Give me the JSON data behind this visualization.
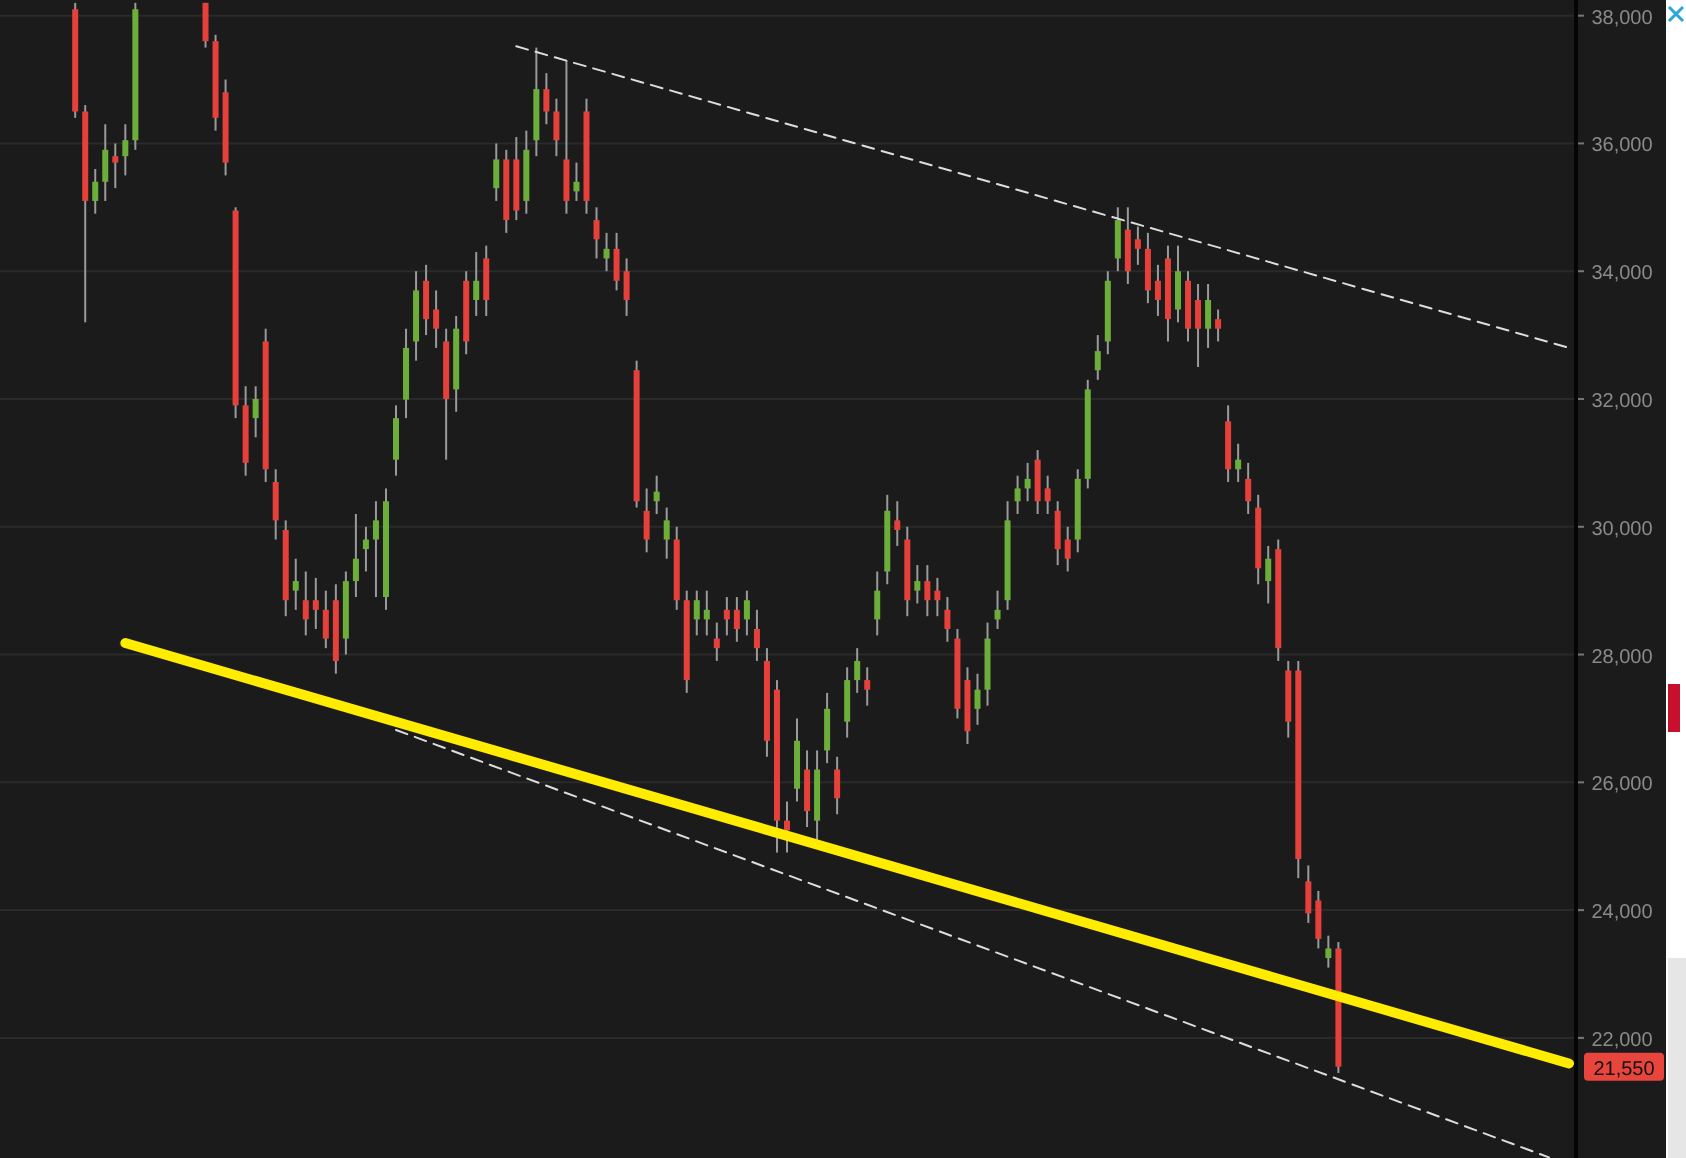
{
  "chart_data": {
    "type": "candlestick",
    "ylim": [
      20120,
      38245
    ],
    "yticks": [
      {
        "value": 22000,
        "label": "22,000"
      },
      {
        "value": 24000,
        "label": "24,000"
      },
      {
        "value": 26000,
        "label": "26,000"
      },
      {
        "value": 28000,
        "label": "28,000"
      },
      {
        "value": 30000,
        "label": "30,000"
      },
      {
        "value": 32000,
        "label": "32,000"
      },
      {
        "value": 34000,
        "label": "34,000"
      },
      {
        "value": 36000,
        "label": "36,000"
      },
      {
        "value": 38000,
        "label": "38,000"
      }
    ],
    "tick_labels": "y",
    "grid": "y",
    "categories": [
      null,
      null,
      null,
      null,
      null,
      null,
      null,
      null,
      null,
      null,
      null,
      null,
      null,
      null,
      null,
      null,
      null,
      null,
      null,
      null,
      null,
      null,
      null,
      null,
      null,
      null,
      null,
      null,
      null,
      null,
      null,
      null,
      null,
      null,
      null,
      null,
      null,
      null,
      null,
      null,
      null,
      null,
      null,
      null,
      null,
      null,
      null,
      null,
      null,
      null,
      null,
      null,
      null,
      null,
      null,
      null,
      null,
      null,
      null,
      null,
      null,
      null,
      null,
      null,
      null,
      null,
      null,
      null,
      null,
      null,
      null,
      null,
      null,
      null,
      null,
      null,
      null,
      null,
      null,
      null,
      null,
      null,
      null,
      null,
      null,
      null,
      null,
      null,
      null,
      null,
      null,
      null,
      null,
      null,
      null,
      null,
      null,
      null,
      null,
      null,
      null,
      null,
      null,
      null,
      null,
      null,
      null,
      null,
      null,
      null,
      null,
      null,
      null,
      null,
      null,
      null,
      null,
      null,
      null,
      null,
      null,
      null,
      null,
      null,
      null,
      null,
      null,
      null,
      null,
      null,
      null,
      null,
      null,
      null,
      null,
      null,
      null,
      null,
      null,
      null,
      null,
      null,
      null,
      null,
      null,
      null,
      null,
      null,
      null,
      null,
      null,
      null,
      null,
      null,
      null,
      null,
      null
    ],
    "colors": [
      null,
      null,
      null,
      null,
      null,
      null,
      null,
      "#e5403a",
      "#e5403a",
      "#6cae3a",
      "#6cae3a",
      "#e5403a",
      "#6cae3a",
      "#6cae3a",
      null,
      null,
      null,
      null,
      null,
      null,
      "#e5403a",
      "#e5403a",
      "#e5403a",
      "#e5403a",
      "#e5403a",
      "#6cae3a",
      "#e5403a",
      "#e5403a",
      "#e5403a",
      "#6cae3a",
      "#e5403a",
      "#e5403a",
      "#e5403a",
      "#e5403a",
      "#6cae3a",
      "#6cae3a",
      "#6cae3a",
      "#6cae3a",
      "#6cae3a",
      "#6cae3a",
      "#6cae3a",
      "#6cae3a",
      "#e5403a",
      "#e5403a",
      "#e5403a",
      "#6cae3a",
      "#e5403a",
      "#6cae3a",
      "#e5403a",
      "#6cae3a",
      "#e5403a",
      "#e5403a",
      "#6cae3a",
      "#6cae3a",
      "#e5403a",
      "#e5403a",
      "#e5403a",
      "#6cae3a",
      "#e5403a",
      "#e5403a",
      "#6cae3a",
      "#e5403a",
      "#e5403a",
      "#e5403a",
      "#e5403a",
      "#6cae3a",
      "#6cae3a",
      "#e5403a",
      "#e5403a",
      "#6cae3a",
      "#6cae3a",
      "#e5403a",
      "#e5403a",
      "#e5403a",
      "#6cae3a",
      "#e5403a",
      "#e5403a",
      "#e5403a",
      "#e5403a",
      "#6cae3a",
      "#e5403a",
      "#6cae3a",
      "#6cae3a",
      "#e5403a",
      "#6cae3a",
      "#6cae3a",
      "#e5403a",
      "#6cae3a",
      "#6cae3a",
      "#e5403a",
      "#e5403a",
      "#6cae3a",
      "#e5403a",
      "#e5403a",
      "#e5403a",
      "#e5403a",
      "#e5403a",
      "#6cae3a",
      "#6cae3a",
      "#6cae3a",
      "#6cae3a",
      "#6cae3a",
      "#6cae3a",
      "#e5403a",
      "#e5403a",
      "#e5403a",
      "#e5403a",
      "#6cae3a",
      "#6cae3a",
      "#6cae3a",
      "#6cae3a",
      "#6cae3a",
      "#e5403a",
      "#e5403a",
      "#e5403a",
      "#e5403a",
      "#e5403a",
      "#6cae3a",
      "#e5403a",
      "#e5403a",
      "#6cae3a",
      "#e5403a",
      "#e5403a",
      "#6cae3a",
      "#e5403a",
      "#e5403a",
      "#6cae3a",
      "#e5403a",
      "#e5403a",
      "#e5403a",
      "#e5403a",
      "#e5403a",
      "#6cae3a",
      "#e5403a",
      null,
      null,
      null,
      null,
      null,
      null,
      null,
      null,
      null,
      null,
      null,
      null,
      null,
      null,
      null,
      null,
      null,
      null,
      null,
      null,
      null,
      null,
      null
    ],
    "ohlc": [
      null,
      null,
      null,
      null,
      null,
      null,
      null,
      [
        38100,
        38200,
        36400,
        36500
      ],
      [
        36500,
        36600,
        33200,
        35100
      ],
      [
        35100,
        35600,
        34900,
        35400
      ],
      [
        35400,
        36300,
        35100,
        35900
      ],
      [
        35800,
        36000,
        35300,
        35700
      ],
      [
        35800,
        36300,
        35500,
        36050
      ],
      [
        36050,
        38200,
        35900,
        38100
      ],
      null,
      null,
      null,
      null,
      null,
      null,
      [
        38200,
        38200,
        37500,
        37600
      ],
      [
        37600,
        37700,
        36200,
        36400
      ],
      [
        36800,
        37000,
        35500,
        35700
      ],
      [
        34950,
        35000,
        31700,
        31900
      ],
      [
        31900,
        32200,
        30800,
        31000
      ],
      [
        31700,
        32200,
        31400,
        32000
      ],
      [
        32900,
        33100,
        30700,
        30900
      ],
      [
        30700,
        30900,
        29800,
        30100
      ],
      [
        29950,
        30100,
        28600,
        28850
      ],
      [
        29000,
        29500,
        28700,
        29150
      ],
      [
        28850,
        29300,
        28300,
        28550
      ],
      [
        28850,
        29200,
        28400,
        28700
      ],
      [
        28700,
        29000,
        28100,
        28250
      ],
      [
        28850,
        29100,
        27700,
        27900
      ],
      [
        28250,
        29300,
        28000,
        29150
      ],
      [
        29150,
        30200,
        28900,
        29500
      ],
      [
        29650,
        30000,
        29300,
        29800
      ],
      [
        29800,
        30400,
        28900,
        30100
      ],
      [
        28900,
        30600,
        28700,
        30400
      ],
      [
        31050,
        31900,
        30800,
        31700
      ],
      [
        31990,
        33100,
        31700,
        32800
      ],
      [
        32900,
        34000,
        32600,
        33700
      ],
      [
        33850,
        34100,
        33000,
        33250
      ],
      [
        33400,
        33700,
        32800,
        33100
      ],
      [
        32900,
        33100,
        31050,
        32000
      ],
      [
        32150,
        33300,
        31800,
        33100
      ],
      [
        33850,
        34000,
        32700,
        32900
      ],
      [
        33550,
        34300,
        33300,
        33850
      ],
      [
        34200,
        34400,
        33300,
        33550
      ],
      [
        35300,
        36000,
        35100,
        35750
      ],
      [
        35750,
        35900,
        34600,
        34800
      ],
      [
        35750,
        36100,
        34800,
        34950
      ],
      [
        35100,
        36200,
        34900,
        35900
      ],
      [
        36050,
        37500,
        35800,
        36850
      ],
      [
        36850,
        37100,
        36300,
        36500
      ],
      [
        36500,
        36700,
        35800,
        36050
      ],
      [
        35750,
        37300,
        34900,
        35100
      ],
      [
        35250,
        35700,
        35100,
        35400
      ],
      [
        36500,
        36700,
        34900,
        35100
      ],
      [
        34800,
        35000,
        34200,
        34500
      ],
      [
        34200,
        34600,
        34000,
        34350
      ],
      [
        34350,
        34600,
        33700,
        33850
      ],
      [
        34000,
        34200,
        33300,
        33550
      ],
      [
        32450,
        32600,
        30300,
        30400
      ],
      [
        30250,
        30600,
        29600,
        29800
      ],
      [
        30400,
        30800,
        30200,
        30550
      ],
      [
        29800,
        30300,
        29500,
        30100
      ],
      [
        29800,
        30000,
        28700,
        28850
      ],
      [
        28850,
        29000,
        27400,
        27600
      ],
      [
        28550,
        29000,
        28300,
        28850
      ],
      [
        28550,
        29000,
        28300,
        28700
      ],
      [
        28250,
        28500,
        27900,
        28100
      ],
      [
        28700,
        28900,
        28300,
        28550
      ],
      [
        28700,
        28900,
        28200,
        28400
      ],
      [
        28550,
        29000,
        28300,
        28850
      ],
      [
        28400,
        28700,
        27900,
        28100
      ],
      [
        27900,
        28100,
        26400,
        26650
      ],
      [
        27450,
        27600,
        24900,
        25400
      ],
      [
        25400,
        25700,
        24900,
        25250
      ],
      [
        25900,
        27000,
        25700,
        26650
      ],
      [
        26200,
        26500,
        25300,
        25550
      ],
      [
        25400,
        26500,
        25100,
        26200
      ],
      [
        26500,
        27400,
        26300,
        27150
      ],
      [
        26200,
        26400,
        25500,
        25750
      ],
      [
        26950,
        27800,
        26700,
        27600
      ],
      [
        27600,
        28100,
        27400,
        27900
      ],
      [
        27600,
        27800,
        27200,
        27450
      ],
      [
        28550,
        29300,
        28300,
        29000
      ],
      [
        29300,
        30500,
        29100,
        30250
      ],
      [
        30100,
        30400,
        29700,
        29950
      ],
      [
        29800,
        30000,
        28600,
        28850
      ],
      [
        29000,
        29400,
        28800,
        29150
      ],
      [
        29150,
        29400,
        28600,
        28850
      ],
      [
        29000,
        29200,
        28600,
        28850
      ],
      [
        28700,
        28900,
        28200,
        28400
      ],
      [
        28250,
        28400,
        27000,
        27150
      ],
      [
        27600,
        27800,
        26600,
        26800
      ],
      [
        27150,
        27700,
        26900,
        27450
      ],
      [
        27450,
        28500,
        27200,
        28250
      ],
      [
        28550,
        29000,
        28400,
        28700
      ],
      [
        28850,
        30400,
        28700,
        30100
      ],
      [
        30400,
        30800,
        30200,
        30600
      ],
      [
        30600,
        31000,
        30400,
        30750
      ],
      [
        31050,
        31200,
        30200,
        30400
      ],
      [
        30600,
        30800,
        30200,
        30400
      ],
      [
        30250,
        30400,
        29400,
        29650
      ],
      [
        29800,
        30000,
        29300,
        29500
      ],
      [
        29800,
        30900,
        29600,
        30750
      ],
      [
        30750,
        32300,
        30600,
        32150
      ],
      [
        32450,
        33000,
        32300,
        32750
      ],
      [
        32900,
        34000,
        32700,
        33850
      ],
      [
        34200,
        35000,
        34000,
        34800
      ],
      [
        34650,
        35000,
        33800,
        34000
      ],
      [
        34500,
        34700,
        34100,
        34350
      ],
      [
        34350,
        34600,
        33500,
        33700
      ],
      [
        33850,
        34100,
        33300,
        33550
      ],
      [
        34200,
        34400,
        32900,
        33250
      ],
      [
        33400,
        34400,
        33200,
        34000
      ],
      [
        33850,
        34000,
        32900,
        33100
      ],
      [
        33550,
        33800,
        32500,
        33100
      ],
      [
        33100,
        33800,
        32800,
        33550
      ],
      [
        33250,
        33400,
        32900,
        33100
      ],
      [
        31650,
        31900,
        30700,
        30900
      ],
      [
        30900,
        31300,
        30700,
        31050
      ],
      [
        30750,
        31000,
        30200,
        30400
      ],
      [
        30300,
        30500,
        29100,
        29350
      ],
      [
        29150,
        29700,
        28800,
        29500
      ],
      [
        29650,
        29800,
        27900,
        28100
      ],
      [
        27750,
        27900,
        26700,
        26950
      ],
      [
        27750,
        27900,
        24500,
        24800
      ],
      [
        24450,
        24700,
        23800,
        23950
      ],
      [
        24150,
        24300,
        23400,
        23550
      ],
      [
        23250,
        23600,
        23100,
        23400
      ],
      [
        23400,
        23500,
        21450,
        21550
      ],
      null,
      null,
      null,
      null,
      null,
      null,
      null,
      null,
      null,
      null,
      null,
      null,
      null,
      null,
      null,
      null,
      null,
      null,
      null,
      null,
      null,
      null,
      null
    ],
    "series": [
      {
        "type": "line",
        "color": "#ffec00",
        "line_style": "solid",
        "values": [
          null,
          null,
          null,
          null,
          null,
          null,
          null,
          null,
          null,
          null,
          null,
          null,
          28180,
          null,
          null,
          null,
          null,
          null,
          null,
          null,
          null,
          null,
          null,
          null,
          null,
          null,
          null,
          null,
          null,
          null,
          null,
          null,
          null,
          null,
          null,
          null,
          null,
          null,
          null,
          null,
          null,
          null,
          null,
          null,
          null,
          null,
          null,
          null,
          null,
          null,
          null,
          null,
          null,
          null,
          null,
          null,
          null,
          null,
          null,
          null,
          null,
          null,
          null,
          null,
          null,
          null,
          null,
          null,
          null,
          null,
          null,
          null,
          null,
          null,
          null,
          null,
          null,
          null,
          null,
          null,
          null,
          null,
          null,
          null,
          null,
          null,
          null,
          null,
          null,
          null,
          null,
          null,
          null,
          null,
          null,
          null,
          null,
          null,
          null,
          null,
          null,
          null,
          null,
          null,
          null,
          null,
          null,
          null,
          null,
          null,
          null,
          null,
          null,
          null,
          null,
          null,
          null,
          null,
          null,
          null,
          null,
          null,
          null,
          null,
          null,
          null,
          null,
          null,
          null,
          null,
          null,
          null,
          null,
          null,
          null,
          null,
          null,
          null,
          null,
          null,
          null,
          null,
          null,
          null,
          null,
          null,
          null,
          null,
          null,
          null,
          null,
          null,
          null,
          null,
          null,
          null,
          21600
        ]
      },
      {
        "type": "line",
        "color": "#dddddd",
        "line_style": "dashed",
        "values": [
          null,
          null,
          null,
          null,
          null,
          null,
          null,
          null,
          null,
          null,
          null,
          null,
          null,
          null,
          null,
          null,
          null,
          null,
          null,
          null,
          null,
          null,
          null,
          null,
          null,
          null,
          null,
          null,
          null,
          null,
          null,
          null,
          null,
          null,
          null,
          null,
          null,
          null,
          null,
          null,
          null,
          null,
          null,
          null,
          null,
          null,
          null,
          null,
          null,
          null,
          null,
          37520,
          null,
          null,
          null,
          null,
          null,
          null,
          null,
          null,
          null,
          null,
          null,
          null,
          null,
          null,
          null,
          null,
          null,
          null,
          null,
          null,
          null,
          null,
          null,
          null,
          null,
          null,
          null,
          null,
          null,
          null,
          null,
          null,
          null,
          null,
          null,
          null,
          null,
          null,
          null,
          null,
          null,
          null,
          null,
          null,
          null,
          null,
          null,
          null,
          null,
          null,
          null,
          null,
          null,
          null,
          null,
          null,
          null,
          null,
          null,
          null,
          null,
          null,
          null,
          null,
          null,
          null,
          null,
          null,
          null,
          null,
          null,
          null,
          null,
          null,
          null,
          null,
          null,
          null,
          null,
          null,
          null,
          null,
          null,
          null,
          null,
          null,
          null,
          null,
          null,
          null,
          null,
          null,
          null,
          null,
          null,
          null,
          null,
          null,
          null,
          null,
          null,
          null,
          null,
          null,
          32800
        ]
      },
      {
        "type": "line",
        "color": "#dddddd",
        "line_style": "dashed",
        "values": [
          null,
          null,
          null,
          null,
          null,
          null,
          null,
          null,
          null,
          null,
          null,
          null,
          null,
          null,
          null,
          null,
          null,
          null,
          null,
          null,
          null,
          null,
          null,
          null,
          null,
          null,
          null,
          null,
          null,
          null,
          null,
          null,
          null,
          null,
          null,
          null,
          null,
          null,
          null,
          26820,
          null,
          null,
          null,
          null,
          null,
          null,
          null,
          null,
          null,
          null,
          null,
          null,
          null,
          null,
          null,
          null,
          null,
          null,
          null,
          null,
          null,
          null,
          null,
          null,
          null,
          null,
          null,
          null,
          null,
          null,
          null,
          null,
          null,
          null,
          null,
          null,
          null,
          null,
          null,
          null,
          null,
          null,
          null,
          null,
          null,
          null,
          null,
          null,
          null,
          null,
          null,
          null,
          null,
          null,
          null,
          null,
          null,
          null,
          null,
          null,
          null,
          null,
          null,
          null,
          null,
          null,
          null,
          null,
          null,
          null,
          null,
          null,
          null,
          null,
          null,
          null,
          null,
          null,
          null,
          null,
          null,
          null,
          null,
          null,
          null,
          null,
          null,
          null,
          null,
          null,
          null,
          null,
          null,
          null,
          null,
          null,
          null,
          null,
          null,
          null,
          null,
          null,
          null,
          null,
          null,
          null,
          null,
          null,
          null,
          null,
          null,
          null,
          null,
          null,
          20130,
          null,
          null
        ]
      }
    ],
    "annotations": [
      "21,550"
    ]
  }
}
